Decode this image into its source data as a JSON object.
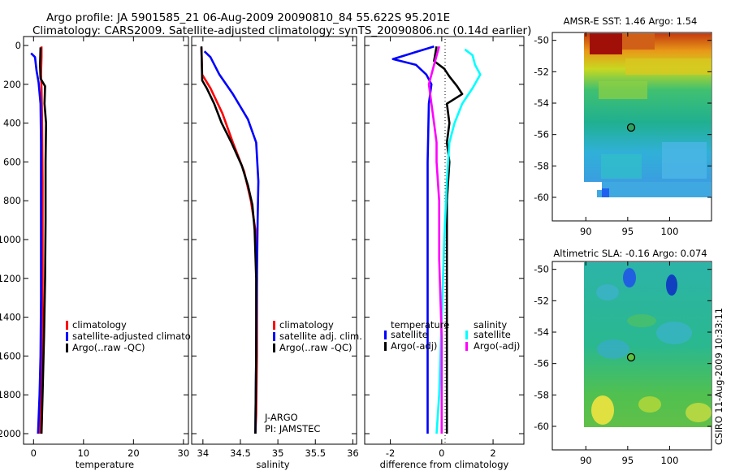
{
  "header": {
    "line1": "Argo profile: JA 5901585_21 06-Aug-2009 20090810_84 55.622S 95.201E",
    "line2": "Climatology: CARS2009. Satellite-adjusted climatology: synTS_20090806.nc (0.14d earlier)"
  },
  "credit": "CSIRO 11-Aug-2009 10:33:11",
  "colors": {
    "climatology": "#ff0000",
    "satellite": "#0000ff",
    "argo": "#000000",
    "sal_satellite": "#00ffff",
    "sal_argo": "#ff00ff"
  },
  "chart_data": [
    {
      "type": "line",
      "xlabel": "temperature",
      "xticks": [
        "0",
        "10",
        "20",
        "30"
      ],
      "yticks": [
        "0",
        "200",
        "400",
        "600",
        "800",
        "1000",
        "1200",
        "1400",
        "1600",
        "1800",
        "2000"
      ],
      "xlim": [
        -2,
        31
      ],
      "ylim": [
        2000,
        0
      ],
      "legend": [
        "climatology",
        "satellite-adjusted climatolo",
        "Argo(..raw -QC)"
      ],
      "series": [
        {
          "name": "climatology",
          "color": "#ff0000",
          "points": [
            [
              1.6,
              5
            ],
            [
              1.6,
              60
            ],
            [
              1.5,
              150
            ],
            [
              1.6,
              220
            ],
            [
              1.7,
              400
            ],
            [
              1.8,
              700
            ],
            [
              1.8,
              1000
            ],
            [
              1.8,
              1300
            ],
            [
              1.7,
              1600
            ],
            [
              1.5,
              1800
            ],
            [
              1.3,
              2000
            ]
          ]
        },
        {
          "name": "satellite-adjusted climatology",
          "color": "#0000ff",
          "points": [
            [
              -0.5,
              40
            ],
            [
              0.3,
              60
            ],
            [
              0.6,
              130
            ],
            [
              1.0,
              190
            ],
            [
              1.4,
              300
            ],
            [
              1.5,
              500
            ],
            [
              1.5,
              900
            ],
            [
              1.5,
              1300
            ],
            [
              1.4,
              1600
            ],
            [
              1.2,
              1800
            ],
            [
              0.9,
              2000
            ]
          ]
        },
        {
          "name": "Argo(..raw -QC)",
          "color": "#000000",
          "points": [
            [
              1.4,
              10
            ],
            [
              1.3,
              100
            ],
            [
              1.4,
              170
            ],
            [
              2.3,
              210
            ],
            [
              2.2,
              300
            ],
            [
              2.5,
              400
            ],
            [
              2.4,
              600
            ],
            [
              2.4,
              900
            ],
            [
              2.3,
              1200
            ],
            [
              2.1,
              1500
            ],
            [
              1.8,
              1800
            ],
            [
              1.6,
              2000
            ]
          ]
        }
      ]
    },
    {
      "type": "line",
      "xlabel": "salinity",
      "xticks": [
        "34",
        "34.5",
        "35",
        "35.5",
        "36"
      ],
      "yticks": [
        "0",
        "200",
        "400",
        "600",
        "800",
        "1000",
        "1200",
        "1400",
        "1600",
        "1800",
        "2000"
      ],
      "xlim": [
        33.85,
        36.05
      ],
      "ylim": [
        2000,
        0
      ],
      "legend": [
        "climatology",
        "satellite adj. clim.",
        "Argo(..raw -QC)"
      ],
      "annotation": [
        "J-ARGO",
        "PI: JAMSTEC"
      ],
      "series": [
        {
          "name": "climatology",
          "color": "#ff0000",
          "points": [
            [
              33.98,
              10
            ],
            [
              33.99,
              150
            ],
            [
              34.1,
              220
            ],
            [
              34.26,
              350
            ],
            [
              34.4,
              500
            ],
            [
              34.55,
              650
            ],
            [
              34.64,
              800
            ],
            [
              34.7,
              950
            ],
            [
              34.72,
              1200
            ],
            [
              34.72,
              1600
            ],
            [
              34.71,
              1900
            ],
            [
              34.7,
              2000
            ]
          ]
        },
        {
          "name": "satellite adj. clim.",
          "color": "#0000ff",
          "points": [
            [
              34.02,
              30
            ],
            [
              34.1,
              60
            ],
            [
              34.22,
              150
            ],
            [
              34.4,
              250
            ],
            [
              34.6,
              380
            ],
            [
              34.71,
              500
            ],
            [
              34.74,
              700
            ],
            [
              34.73,
              900
            ],
            [
              34.72,
              1200
            ],
            [
              34.71,
              1600
            ],
            [
              34.7,
              2000
            ]
          ]
        },
        {
          "name": "Argo(..raw -QC)",
          "color": "#000000",
          "points": [
            [
              33.98,
              5
            ],
            [
              33.99,
              180
            ],
            [
              34.05,
              220
            ],
            [
              34.15,
              300
            ],
            [
              34.25,
              400
            ],
            [
              34.38,
              500
            ],
            [
              34.52,
              620
            ],
            [
              34.6,
              720
            ],
            [
              34.66,
              820
            ],
            [
              34.69,
              950
            ],
            [
              34.71,
              1200
            ],
            [
              34.71,
              1600
            ],
            [
              34.7,
              2000
            ]
          ]
        }
      ]
    },
    {
      "type": "line",
      "xlabel": "difference from climatology",
      "xticks": [
        "-2",
        "0",
        "2"
      ],
      "yticks": [],
      "xlim": [
        -3,
        3.2
      ],
      "ylim": [
        2000,
        0
      ],
      "legend_headers": [
        "temperature",
        "salinity"
      ],
      "legend": [
        "satellite",
        "Argo(-adj)",
        "satellite",
        "Argo(-adj)"
      ],
      "series": [
        {
          "name": "temperature satellite",
          "color": "#0000ff",
          "points": [
            [
              -0.3,
              5
            ],
            [
              -1.9,
              70
            ],
            [
              -1.0,
              100
            ],
            [
              -0.6,
              150
            ],
            [
              -0.4,
              200
            ],
            [
              -0.5,
              300
            ],
            [
              -0.55,
              600
            ],
            [
              -0.55,
              1000
            ],
            [
              -0.55,
              1400
            ],
            [
              -0.55,
              1800
            ],
            [
              -0.55,
              2000
            ]
          ]
        },
        {
          "name": "temperature Argo(-adj)",
          "color": "#000000",
          "points": [
            [
              -0.2,
              5
            ],
            [
              -0.3,
              80
            ],
            [
              0.1,
              120
            ],
            [
              0.3,
              160
            ],
            [
              0.6,
              210
            ],
            [
              0.8,
              250
            ],
            [
              0.2,
              300
            ],
            [
              0.3,
              400
            ],
            [
              0.2,
              500
            ],
            [
              0.3,
              600
            ],
            [
              0.2,
              800
            ],
            [
              0.2,
              1100
            ],
            [
              0.2,
              1500
            ],
            [
              0.2,
              1800
            ],
            [
              0.2,
              2000
            ]
          ]
        },
        {
          "name": "salinity satellite",
          "color": "#00ffff",
          "points": [
            [
              0.9,
              20
            ],
            [
              1.2,
              50
            ],
            [
              1.3,
              100
            ],
            [
              1.5,
              150
            ],
            [
              1.2,
              220
            ],
            [
              0.8,
              300
            ],
            [
              0.5,
              400
            ],
            [
              0.3,
              500
            ],
            [
              0.2,
              700
            ],
            [
              0.1,
              1000
            ],
            [
              0.0,
              1400
            ],
            [
              -0.1,
              1800
            ],
            [
              -0.2,
              2000
            ]
          ]
        },
        {
          "name": "salinity Argo(-adj)",
          "color": "#ff00ff",
          "points": [
            [
              -0.1,
              5
            ],
            [
              -0.3,
              100
            ],
            [
              -0.5,
              200
            ],
            [
              -0.4,
              300
            ],
            [
              -0.3,
              400
            ],
            [
              -0.2,
              500
            ],
            [
              -0.2,
              600
            ],
            [
              -0.1,
              800
            ],
            [
              -0.1,
              1100
            ],
            [
              0.0,
              1500
            ],
            [
              0.0,
              1800
            ],
            [
              0.0,
              2000
            ]
          ]
        }
      ]
    },
    {
      "type": "heatmap",
      "title": "AMSR-E SST: 1.46 Argo: 1.54",
      "xticks": [
        "90",
        "95",
        "100"
      ],
      "yticks": [
        "-50",
        "-52",
        "-54",
        "-56",
        "-58",
        "-60"
      ],
      "xlim": [
        86,
        105
      ],
      "ylim": [
        -61.5,
        -49.5
      ],
      "argo_position": [
        95.2,
        -55.6
      ]
    },
    {
      "type": "heatmap",
      "title": "Altimetric SLA: -0.16 Argo: 0.074",
      "xticks": [
        "90",
        "95",
        "100"
      ],
      "yticks": [
        "-50",
        "-52",
        "-54",
        "-56",
        "-58",
        "-60"
      ],
      "xlim": [
        86,
        105
      ],
      "ylim": [
        -61.5,
        -49.5
      ],
      "argo_position": [
        95.2,
        -55.6
      ]
    }
  ]
}
